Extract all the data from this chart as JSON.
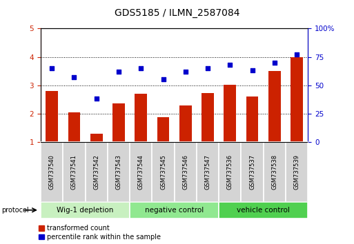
{
  "title": "GDS5185 / ILMN_2587084",
  "samples": [
    "GSM737540",
    "GSM737541",
    "GSM737542",
    "GSM737543",
    "GSM737544",
    "GSM737545",
    "GSM737546",
    "GSM737547",
    "GSM737536",
    "GSM737537",
    "GSM737538",
    "GSM737539"
  ],
  "transformed_count": [
    2.8,
    2.05,
    1.3,
    2.35,
    2.7,
    1.88,
    2.3,
    2.72,
    3.02,
    2.6,
    3.5,
    4.0
  ],
  "percentile_right": [
    65,
    57,
    38,
    62,
    65,
    55,
    62,
    65,
    68,
    63,
    70,
    77
  ],
  "bar_color": "#cc2200",
  "scatter_color": "#0000cc",
  "ylim_left": [
    1,
    5
  ],
  "ylim_right": [
    0,
    100
  ],
  "yticks_left": [
    1,
    2,
    3,
    4,
    5
  ],
  "yticks_right": [
    0,
    25,
    50,
    75,
    100
  ],
  "groups": [
    {
      "label": "Wig-1 depletion",
      "start": 0,
      "end": 4,
      "color": "#c8f0c0"
    },
    {
      "label": "negative control",
      "start": 4,
      "end": 8,
      "color": "#90e890"
    },
    {
      "label": "vehicle control",
      "start": 8,
      "end": 12,
      "color": "#50d050"
    }
  ],
  "legend_red_label": "transformed count",
  "legend_blue_label": "percentile rank within the sample",
  "protocol_label": "protocol",
  "grid_color": "#000000",
  "right_axis_color": "#0000cc",
  "left_axis_color": "#cc2200",
  "bar_bottom": 1.0,
  "sample_box_color": "#d4d4d4",
  "title_fontsize": 10,
  "tick_fontsize": 7.5,
  "label_fontsize": 6,
  "group_fontsize": 7.5,
  "legend_fontsize": 7
}
